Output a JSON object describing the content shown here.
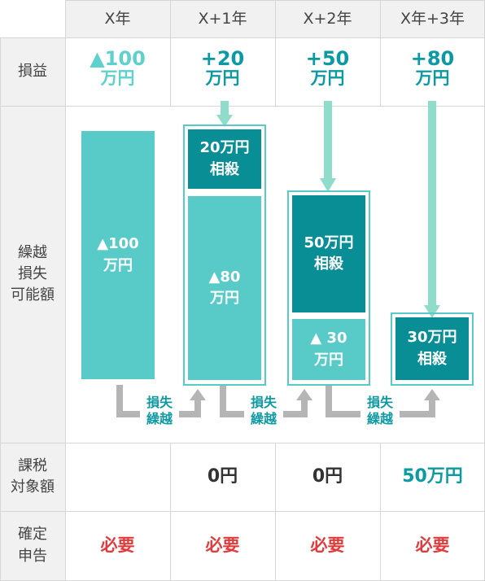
{
  "header": {
    "columns": [
      "X年",
      "X+1年",
      "X+2年",
      "X年+3年"
    ]
  },
  "rows": {
    "profit_loss_label": "損益",
    "carryover_label": "繰越\n損失\n可能額",
    "taxable_label": "課税\n対象額",
    "filing_label": "確定\n申告"
  },
  "profit_loss": [
    {
      "amount": "▲100",
      "unit": "万円"
    },
    {
      "amount": "+20",
      "unit": "万円"
    },
    {
      "amount": "+50",
      "unit": "万円"
    },
    {
      "amount": "+80",
      "unit": "万円"
    }
  ],
  "bars": {
    "x": {
      "loss": "▲100\n万円"
    },
    "x1": {
      "offset": "20万円\n相殺",
      "remaining": "▲80\n万円"
    },
    "x2": {
      "offset": "50万円\n相殺",
      "remaining": "▲ 30\n万円"
    },
    "x3": {
      "offset": "30万円\n相殺"
    }
  },
  "carry_label": "損失\n繰越",
  "taxable": [
    "",
    "0円",
    "0円",
    "50万円"
  ],
  "filing": [
    "必要",
    "必要",
    "必要",
    "必要"
  ],
  "colors": {
    "loss_light": "#58cbc9",
    "offset_dark": "#0a8e96",
    "arrow": "#8fdccb",
    "connector": "#b5b5b5",
    "required": "#e23b3b"
  }
}
